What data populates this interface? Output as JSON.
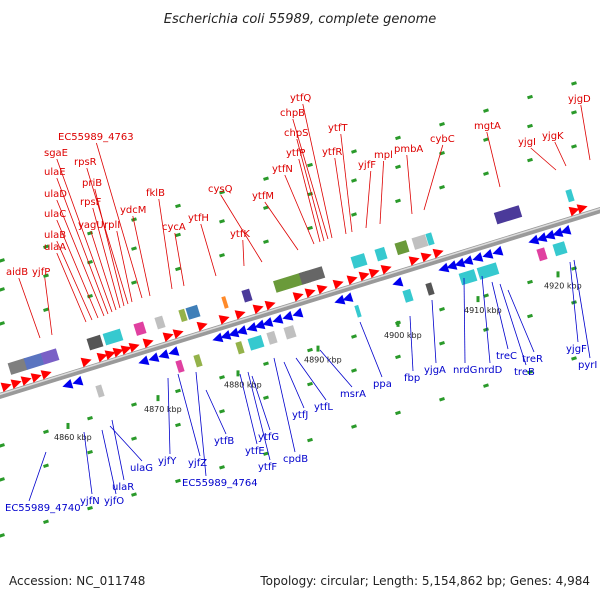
{
  "title": "Escherichia coli 55989, complete genome",
  "footer": {
    "accession": "Accession: NC_011748",
    "summary": "Topology: circular; Length: 5,154,862 bp; Genes: 4,984"
  },
  "colors": {
    "forward_label": "#dd0000",
    "reverse_label": "#0000cc",
    "forward_arrow": "#ff0000",
    "reverse_arrow": "#0000ee",
    "backbone": "#888888",
    "tick": "#2a9a2a"
  },
  "ticks": [
    "4860 kbp",
    "4870 kbp",
    "4880 kbp",
    "4890 kbp",
    "4900 kbp",
    "4910 kbp",
    "4920 kbp"
  ],
  "forward_genes": [
    "aidB",
    "yjfP",
    "ulaA",
    "ulaB",
    "ulaC",
    "ulaD",
    "ulaE",
    "sgaE",
    "yagU",
    "rpsF",
    "priB",
    "rpsR",
    "rplI",
    "EC55989_4763",
    "ydcM",
    "fklB",
    "cycA",
    "ytfH",
    "ytfK",
    "cysQ",
    "ytfM",
    "ytfN",
    "ytfP",
    "chpS",
    "chpB",
    "ytfQ",
    "ytfR",
    "ytfT",
    "yjfF",
    "mpl",
    "pmbA",
    "cybC",
    "mgtA",
    "yjgI",
    "yjgK",
    "yjgD"
  ],
  "reverse_genes": [
    "EC55989_4740",
    "yjfN",
    "yjfO",
    "ulaR",
    "ulaG",
    "yjfY",
    "yjfZ",
    "EC55989_4764",
    "ytfB",
    "ytfE",
    "ytfF",
    "ytfG",
    "cpdB",
    "ytfJ",
    "ytfL",
    "msrA",
    "ppa",
    "fbp",
    "yjgA",
    "nrdG",
    "nrdD",
    "treC",
    "treB",
    "treR",
    "yjgF",
    "pyrI"
  ]
}
